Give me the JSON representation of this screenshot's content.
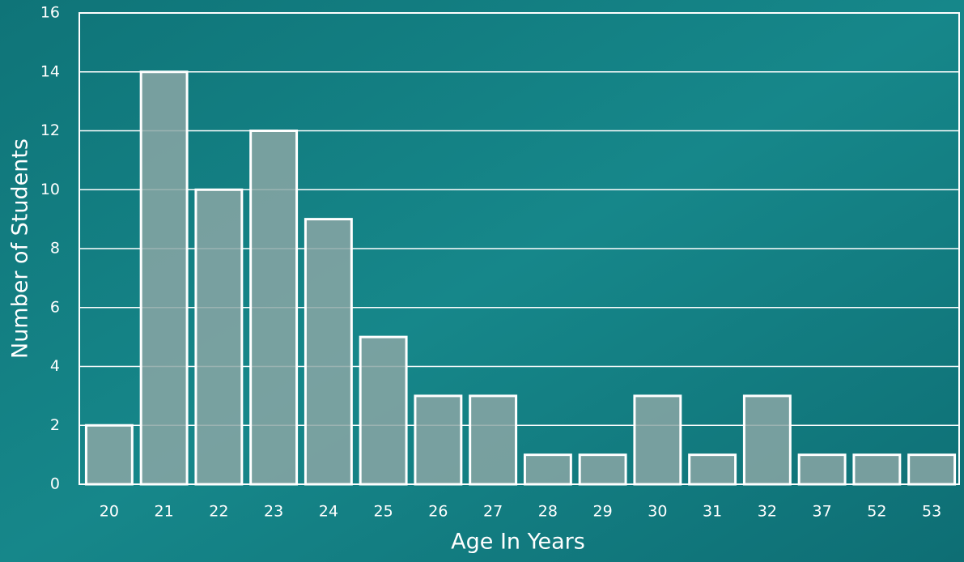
{
  "chart_data": {
    "type": "bar",
    "x_label": "Age In Years",
    "y_label": "Number of Students",
    "categories": [
      "20",
      "21",
      "22",
      "23",
      "24",
      "25",
      "26",
      "27",
      "28",
      "29",
      "30",
      "31",
      "32",
      "37",
      "52",
      "53"
    ],
    "values": [
      2,
      14,
      10,
      12,
      9,
      5,
      3,
      3,
      1,
      1,
      3,
      1,
      3,
      1,
      1,
      1
    ],
    "color": "#8aa6a5",
    "ylim": [
      0,
      16
    ],
    "yticks": [
      0,
      2,
      4,
      6,
      8,
      10,
      12,
      14,
      16
    ],
    "grid": true
  }
}
